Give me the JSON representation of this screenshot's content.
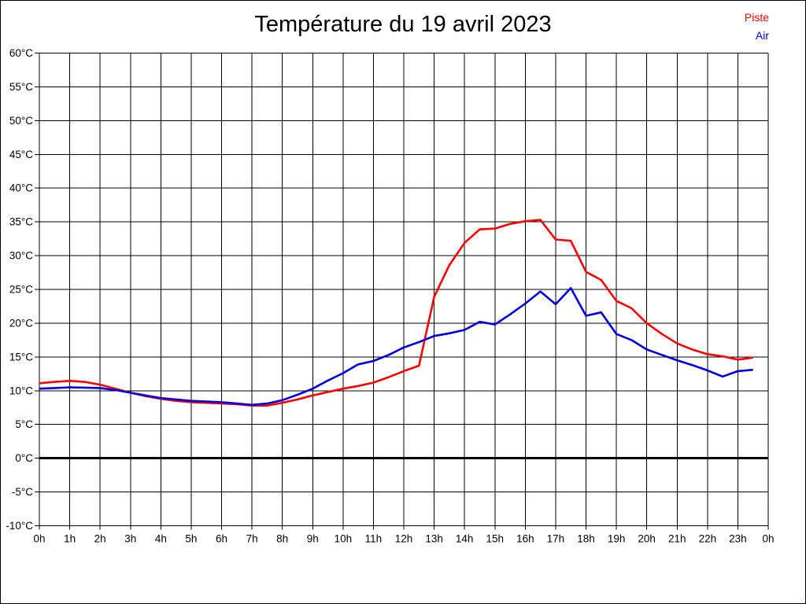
{
  "chart_data": {
    "type": "line",
    "title": "Température du 19 avril 2023",
    "xlabel": "",
    "ylabel": "",
    "x_unit": "hours",
    "xlim": [
      0,
      24
    ],
    "ylim": [
      -10,
      60
    ],
    "y_tick_step": 5,
    "grid": true,
    "zero_line_value": 0,
    "legend_position": "top-right",
    "x_tick_labels": [
      "0h",
      "1h",
      "2h",
      "3h",
      "4h",
      "5h",
      "6h",
      "7h",
      "8h",
      "9h",
      "10h",
      "11h",
      "12h",
      "13h",
      "14h",
      "15h",
      "16h",
      "17h",
      "18h",
      "19h",
      "20h",
      "21h",
      "22h",
      "23h",
      "0h"
    ],
    "y_tick_labels": [
      "-10°C",
      "-5°C",
      "0°C",
      "5°C",
      "10°C",
      "15°C",
      "20°C",
      "25°C",
      "30°C",
      "35°C",
      "40°C",
      "45°C",
      "50°C",
      "55°C",
      "60°C"
    ],
    "x": [
      0,
      0.5,
      1,
      1.5,
      2,
      2.5,
      3,
      3.5,
      4,
      4.5,
      5,
      5.5,
      6,
      6.5,
      7,
      7.5,
      8,
      8.5,
      9,
      9.5,
      10,
      10.5,
      11,
      11.5,
      12,
      12.5,
      13,
      13.5,
      14,
      14.5,
      15,
      15.5,
      16,
      16.5,
      17,
      17.5,
      18,
      18.5,
      19,
      19.5,
      20,
      20.5,
      21,
      21.5,
      22,
      22.5,
      23,
      23.5
    ],
    "series": [
      {
        "name": "Piste",
        "color": "#ff0000",
        "values": [
          11.1,
          11.3,
          11.45,
          11.3,
          10.9,
          10.3,
          9.7,
          9.2,
          8.8,
          8.5,
          8.3,
          8.2,
          8.1,
          8.0,
          7.8,
          7.8,
          8.2,
          8.7,
          9.3,
          9.8,
          10.3,
          10.7,
          11.2,
          12.0,
          12.9,
          13.7,
          23.9,
          28.6,
          31.9,
          33.9,
          34.0,
          34.7,
          35.1,
          35.3,
          32.4,
          32.2,
          27.6,
          26.4,
          23.3,
          22.2,
          20.0,
          18.4,
          17.0,
          16.1,
          15.4,
          15.1,
          14.6,
          14.9
        ]
      },
      {
        "name": "Air",
        "color": "#0000dd",
        "values": [
          10.3,
          10.4,
          10.5,
          10.45,
          10.4,
          10.1,
          9.7,
          9.3,
          8.9,
          8.7,
          8.5,
          8.4,
          8.3,
          8.1,
          7.9,
          8.1,
          8.6,
          9.4,
          10.3,
          11.5,
          12.6,
          13.9,
          14.4,
          15.3,
          16.4,
          17.2,
          18.1,
          18.5,
          19.0,
          20.2,
          19.8,
          21.3,
          22.9,
          24.7,
          22.8,
          25.2,
          21.1,
          21.6,
          18.4,
          17.5,
          16.1,
          15.3,
          14.5,
          13.8,
          13.0,
          12.1,
          12.9,
          13.1
        ]
      }
    ]
  },
  "colors": {
    "background": "#ffffff",
    "grid": "#000000",
    "axis_text": "#000000",
    "zero_line": "#000000"
  }
}
